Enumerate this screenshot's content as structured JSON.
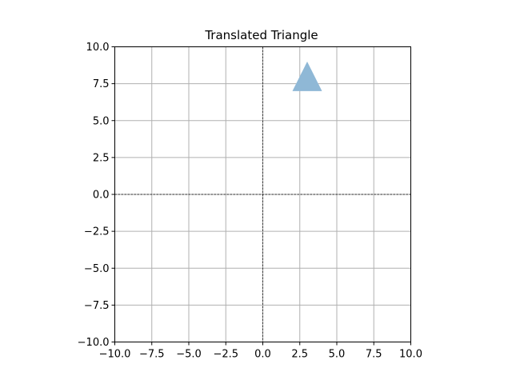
{
  "chart_data": {
    "type": "polygon",
    "title": "Translated Triangle",
    "xlabel": "",
    "ylabel": "",
    "xlim": [
      -10,
      10
    ],
    "ylim": [
      -10,
      10
    ],
    "xticks": [
      -10,
      -7.5,
      -5,
      -2.5,
      0,
      2.5,
      5,
      7.5,
      10
    ],
    "yticks": [
      -10,
      -7.5,
      -5,
      -2.5,
      0,
      2.5,
      5,
      7.5,
      10
    ],
    "xtick_labels": [
      "−10.0",
      "−7.5",
      "−5.0",
      "−2.5",
      "0.0",
      "2.5",
      "5.0",
      "7.5",
      "10.0"
    ],
    "ytick_labels": [
      "−10.0",
      "−7.5",
      "−5.0",
      "−2.5",
      "0.0",
      "2.5",
      "5.0",
      "7.5",
      "10.0"
    ],
    "grid": true,
    "reference_lines": {
      "x": 0,
      "y": 0,
      "style": "dashed"
    },
    "triangle": {
      "vertices": [
        [
          2,
          7
        ],
        [
          4,
          7
        ],
        [
          3,
          9
        ]
      ],
      "color": "#8fb8d6"
    },
    "colors": {
      "grid": "#b0b0b0",
      "axes": "#000000"
    }
  }
}
